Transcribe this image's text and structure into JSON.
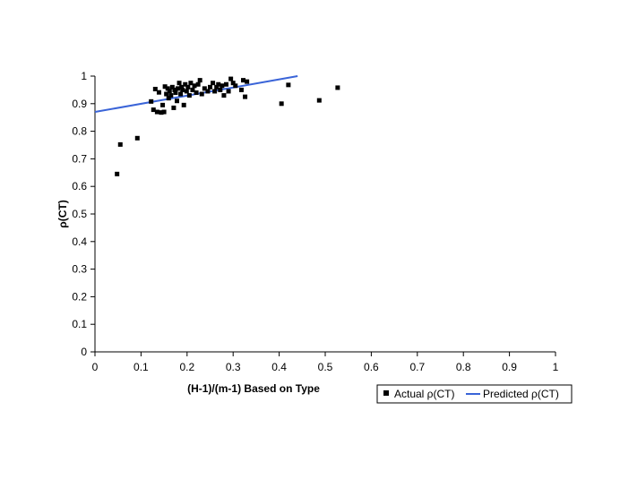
{
  "chart_data": {
    "type": "scatter",
    "title": "",
    "xlabel": "(H-1)/(m-1) Based on Type",
    "ylabel": "ρ(CT)",
    "xlim": [
      0,
      1
    ],
    "ylim": [
      0,
      1
    ],
    "x_ticks": [
      "0",
      "0.1",
      "0.2",
      "0.3",
      "0.4",
      "0.5",
      "0.6",
      "0.7",
      "0.8",
      "0.9",
      "1"
    ],
    "y_ticks": [
      "0",
      "0.1",
      "0.2",
      "0.3",
      "0.4",
      "0.5",
      "0.6",
      "0.7",
      "0.8",
      "0.9",
      "1"
    ],
    "grid": false,
    "legend_position": "bottom-right",
    "series": [
      {
        "name": "Actual ρ(CT)",
        "kind": "points",
        "marker": "square",
        "color": "#000000",
        "points": [
          [
            0.048,
            0.645
          ],
          [
            0.055,
            0.752
          ],
          [
            0.092,
            0.775
          ],
          [
            0.122,
            0.908
          ],
          [
            0.127,
            0.878
          ],
          [
            0.131,
            0.953
          ],
          [
            0.135,
            0.87
          ],
          [
            0.139,
            0.941
          ],
          [
            0.144,
            0.868
          ],
          [
            0.147,
            0.895
          ],
          [
            0.15,
            0.87
          ],
          [
            0.152,
            0.962
          ],
          [
            0.155,
            0.935
          ],
          [
            0.158,
            0.955
          ],
          [
            0.16,
            0.92
          ],
          [
            0.162,
            0.946
          ],
          [
            0.165,
            0.93
          ],
          [
            0.168,
            0.96
          ],
          [
            0.171,
            0.885
          ],
          [
            0.173,
            0.95
          ],
          [
            0.175,
            0.94
          ],
          [
            0.178,
            0.91
          ],
          [
            0.18,
            0.955
          ],
          [
            0.183,
            0.975
          ],
          [
            0.186,
            0.935
          ],
          [
            0.188,
            0.96
          ],
          [
            0.19,
            0.95
          ],
          [
            0.193,
            0.895
          ],
          [
            0.196,
            0.97
          ],
          [
            0.199,
            0.945
          ],
          [
            0.202,
            0.96
          ],
          [
            0.205,
            0.93
          ],
          [
            0.208,
            0.975
          ],
          [
            0.212,
            0.95
          ],
          [
            0.216,
            0.965
          ],
          [
            0.22,
            0.94
          ],
          [
            0.224,
            0.97
          ],
          [
            0.228,
            0.985
          ],
          [
            0.232,
            0.935
          ],
          [
            0.238,
            0.955
          ],
          [
            0.245,
            0.945
          ],
          [
            0.25,
            0.96
          ],
          [
            0.256,
            0.975
          ],
          [
            0.26,
            0.945
          ],
          [
            0.264,
            0.96
          ],
          [
            0.268,
            0.97
          ],
          [
            0.272,
            0.95
          ],
          [
            0.276,
            0.965
          ],
          [
            0.28,
            0.93
          ],
          [
            0.285,
            0.97
          ],
          [
            0.29,
            0.945
          ],
          [
            0.295,
            0.99
          ],
          [
            0.3,
            0.975
          ],
          [
            0.305,
            0.965
          ],
          [
            0.318,
            0.95
          ],
          [
            0.322,
            0.985
          ],
          [
            0.326,
            0.925
          ],
          [
            0.33,
            0.98
          ],
          [
            0.405,
            0.9
          ],
          [
            0.42,
            0.968
          ],
          [
            0.487,
            0.912
          ],
          [
            0.527,
            0.958
          ]
        ]
      },
      {
        "name": "Predicted ρ(CT)",
        "kind": "line",
        "color": "#3a64d8",
        "points": [
          [
            0.0,
            0.87
          ],
          [
            0.44,
            1.0
          ]
        ]
      }
    ]
  }
}
